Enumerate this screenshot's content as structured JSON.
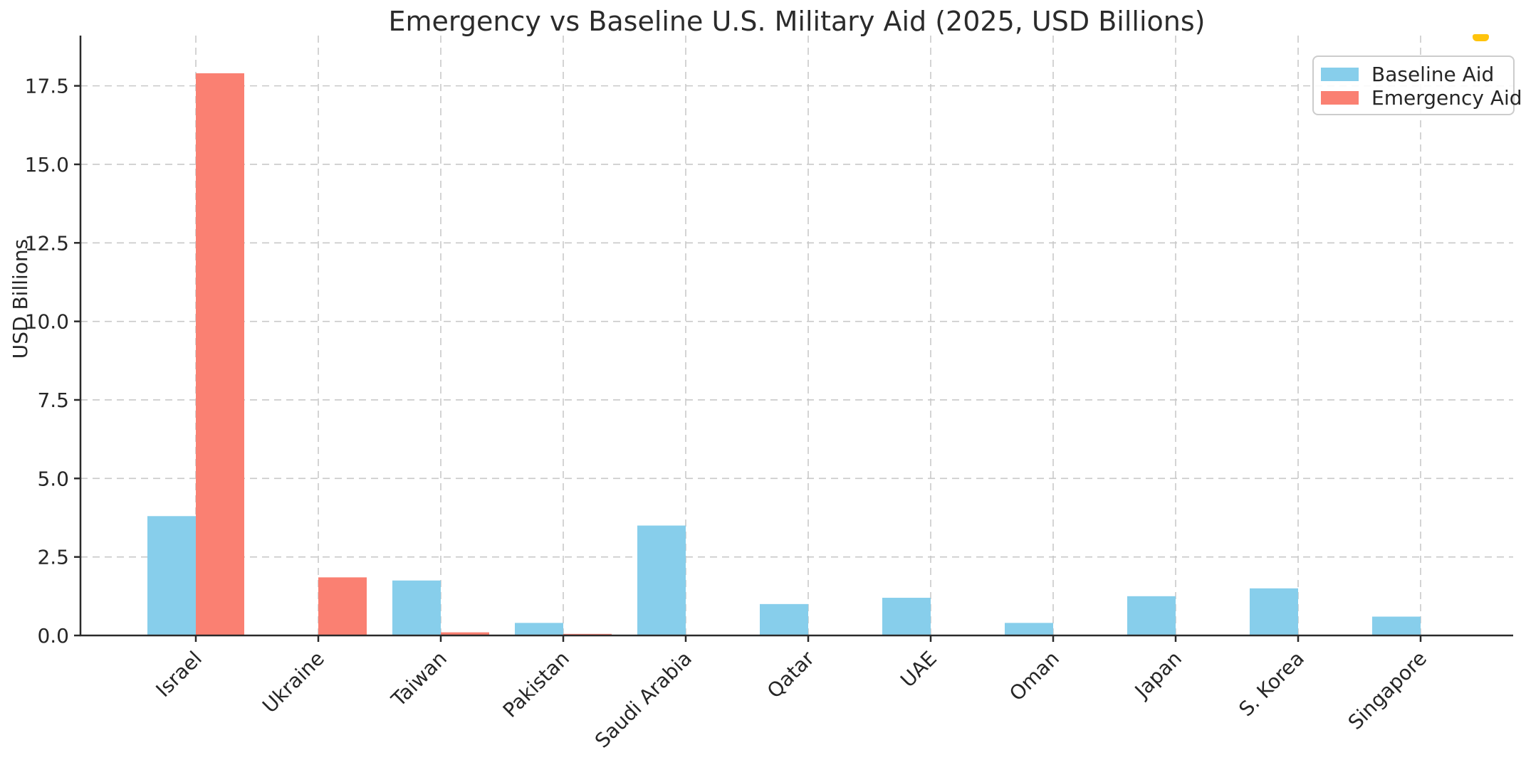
{
  "decor": {
    "dash_color": "#FFC40C"
  },
  "chart_data": {
    "type": "bar",
    "title": "Emergency vs Baseline U.S. Military Aid (2025, USD Billions)",
    "xlabel": "",
    "ylabel": "USD Billions",
    "categories": [
      "Israel",
      "Ukraine",
      "Taiwan",
      "Pakistan",
      "Saudi Arabia",
      "Qatar",
      "UAE",
      "Oman",
      "Japan",
      "S. Korea",
      "Singapore"
    ],
    "series": [
      {
        "name": "Baseline Aid",
        "color": "#87CEEB",
        "values": [
          3.8,
          0,
          1.75,
          0.4,
          3.5,
          1.0,
          1.2,
          0.4,
          1.25,
          1.5,
          0.6
        ]
      },
      {
        "name": "Emergency Aid",
        "color": "#FA8072",
        "values": [
          17.9,
          1.85,
          0.1,
          0.05,
          0,
          0,
          0,
          0,
          0,
          0,
          0
        ]
      }
    ],
    "ylim": [
      0,
      19.1
    ],
    "yticks": [
      0.0,
      2.5,
      5.0,
      7.5,
      10.0,
      12.5,
      15.0,
      17.5
    ],
    "ytick_labels": [
      "0.0",
      "2.5",
      "5.0",
      "7.5",
      "10.0",
      "12.5",
      "15.0",
      "17.5"
    ],
    "grid": "dashed, horizontal and vertical, drawn below bars",
    "legend_position": "upper right",
    "x_tick_label_rotation_deg": 45,
    "colors": {
      "grid": "#c9c9c9",
      "axis": "#2a2a2a",
      "text": "#262626"
    }
  }
}
